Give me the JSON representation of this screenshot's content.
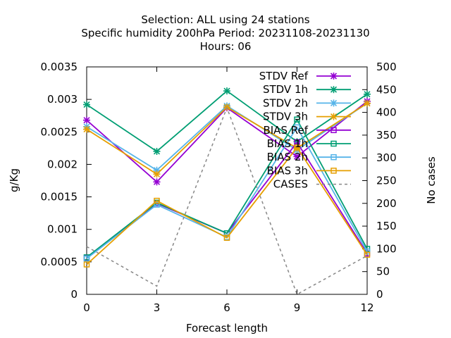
{
  "chart_data": {
    "type": "line",
    "title_lines": [
      "Selection: ALL using    24 stations",
      "Specific humidity 200hPa   Period: 20231108-20231130",
      "Hours:  06"
    ],
    "xlabel": "Forecast length",
    "ylabel": "g/Kg",
    "y2label": "No cases",
    "x": [
      0,
      3,
      6,
      9,
      12
    ],
    "x_ticks": [
      "0",
      "3",
      "6",
      "9",
      "12"
    ],
    "xlim": [
      0,
      12
    ],
    "ylim": [
      0,
      0.0035
    ],
    "y_ticks": [
      "0",
      "0.0005",
      "0.001",
      "0.0015",
      "0.002",
      "0.0025",
      "0.003",
      "0.0035"
    ],
    "y2lim": [
      0,
      500
    ],
    "y2_ticks": [
      "0",
      "50",
      "100",
      "150",
      "200",
      "250",
      "300",
      "350",
      "400",
      "450",
      "500"
    ],
    "grid": false,
    "legend_position": "top-right",
    "series": [
      {
        "name": "STDV Ref",
        "color": "#9400d3",
        "marker": "x-star",
        "axis": "y1",
        "values": [
          0.00268,
          0.00173,
          0.00287,
          0.00212,
          0.00297
        ]
      },
      {
        "name": "STDV 1h",
        "color": "#009e73",
        "marker": "x-star",
        "axis": "y1",
        "values": [
          0.00292,
          0.0022,
          0.00313,
          0.00235,
          0.00308
        ]
      },
      {
        "name": "STDV 2h",
        "color": "#56b4e9",
        "marker": "x-star",
        "axis": "y1",
        "values": [
          0.00258,
          0.00191,
          0.0029,
          0.00222,
          0.00294
        ]
      },
      {
        "name": "STDV 3h",
        "color": "#e69f00",
        "marker": "x-star",
        "axis": "y1",
        "values": [
          0.00254,
          0.00185,
          0.00288,
          0.00225,
          0.00294
        ]
      },
      {
        "name": "BIAS Ref",
        "color": "#9400d3",
        "marker": "square",
        "axis": "y1",
        "values": [
          0.00056,
          0.0014,
          0.00094,
          0.00234,
          0.00063
        ]
      },
      {
        "name": "BIAS 1h",
        "color": "#009e73",
        "marker": "square",
        "axis": "y1",
        "values": [
          0.00057,
          0.00141,
          0.00094,
          0.00269,
          0.0007
        ]
      },
      {
        "name": "BIAS 2h",
        "color": "#56b4e9",
        "marker": "square",
        "axis": "y1",
        "values": [
          0.00055,
          0.00138,
          0.00088,
          0.00257,
          0.00066
        ]
      },
      {
        "name": "BIAS 3h",
        "color": "#e69f00",
        "marker": "square",
        "axis": "y1",
        "values": [
          0.00046,
          0.00144,
          0.00087,
          0.00226,
          0.00061
        ]
      },
      {
        "name": "CASES",
        "color": "#888888",
        "marker": "none",
        "dash": true,
        "axis": "y2",
        "values": [
          105,
          18,
          410,
          0,
          85
        ]
      }
    ]
  }
}
